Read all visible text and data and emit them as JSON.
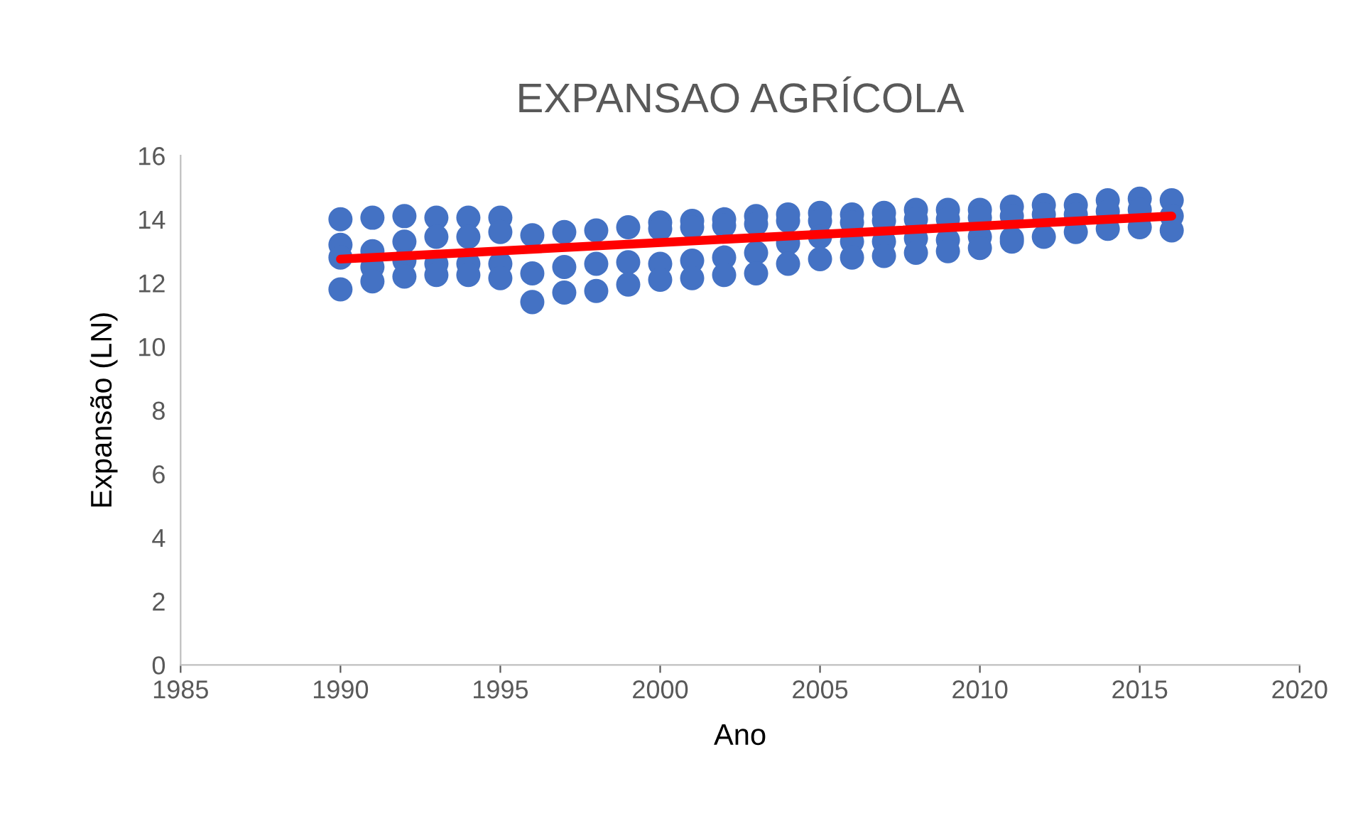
{
  "chart_data": {
    "type": "scatter",
    "title": "EXPANSAO AGRÍCOLA",
    "xlabel": "Ano",
    "ylabel": "Expansão (LN)",
    "xlim": [
      1985,
      2020
    ],
    "xticks": [
      1985,
      1990,
      1995,
      2000,
      2005,
      2010,
      2015,
      2020
    ],
    "ylim": [
      0,
      16
    ],
    "yticks": [
      0,
      2,
      4,
      6,
      8,
      10,
      12,
      14,
      16
    ],
    "grid": false,
    "legend": false,
    "marker": "circle",
    "series": [
      {
        "color": "#4472c4",
        "x": [
          1990,
          1990,
          1990,
          1990,
          1991,
          1991,
          1991,
          1991,
          1992,
          1992,
          1992,
          1992,
          1993,
          1993,
          1993,
          1993,
          1994,
          1994,
          1994,
          1994,
          1995,
          1995,
          1995,
          1995,
          1996,
          1996,
          1996,
          1997,
          1997,
          1997,
          1998,
          1998,
          1998,
          1999,
          1999,
          1999,
          2000,
          2000,
          2000,
          2000,
          2001,
          2001,
          2001,
          2001,
          2002,
          2002,
          2002,
          2002,
          2003,
          2003,
          2003,
          2003,
          2004,
          2004,
          2004,
          2004,
          2005,
          2005,
          2005,
          2005,
          2006,
          2006,
          2006,
          2006,
          2007,
          2007,
          2007,
          2007,
          2008,
          2008,
          2008,
          2008,
          2009,
          2009,
          2009,
          2009,
          2010,
          2010,
          2010,
          2010,
          2011,
          2011,
          2011,
          2011,
          2012,
          2012,
          2012,
          2013,
          2013,
          2013,
          2014,
          2014,
          2014,
          2015,
          2015,
          2015,
          2016,
          2016,
          2016
        ],
        "values": [
          14.0,
          13.2,
          12.8,
          11.8,
          14.05,
          13.0,
          12.5,
          12.05,
          14.1,
          13.3,
          12.7,
          12.2,
          14.05,
          13.45,
          12.6,
          12.25,
          14.05,
          13.45,
          12.6,
          12.25,
          14.05,
          13.6,
          12.6,
          12.15,
          13.5,
          12.3,
          11.4,
          13.6,
          12.5,
          11.7,
          13.65,
          12.6,
          11.75,
          13.75,
          12.65,
          11.95,
          13.9,
          13.7,
          12.6,
          12.1,
          13.95,
          13.75,
          12.7,
          12.15,
          14.0,
          13.8,
          12.8,
          12.25,
          14.1,
          13.85,
          12.95,
          12.3,
          14.15,
          13.95,
          13.25,
          12.6,
          14.2,
          13.95,
          13.45,
          12.75,
          14.15,
          13.9,
          13.3,
          12.8,
          14.2,
          13.95,
          13.3,
          12.85,
          14.3,
          14.0,
          13.4,
          12.95,
          14.3,
          14.0,
          13.35,
          13.0,
          14.3,
          14.05,
          13.45,
          13.1,
          14.4,
          14.1,
          13.4,
          13.3,
          14.45,
          14.15,
          13.45,
          14.45,
          14.15,
          13.6,
          14.6,
          14.25,
          13.7,
          14.65,
          14.3,
          13.75,
          14.6,
          14.1,
          13.65
        ]
      },
      {
        "type": "line",
        "color": "#ff0000",
        "marker": "none",
        "x": [
          1990,
          2016
        ],
        "values": [
          12.75,
          14.1
        ]
      }
    ]
  }
}
